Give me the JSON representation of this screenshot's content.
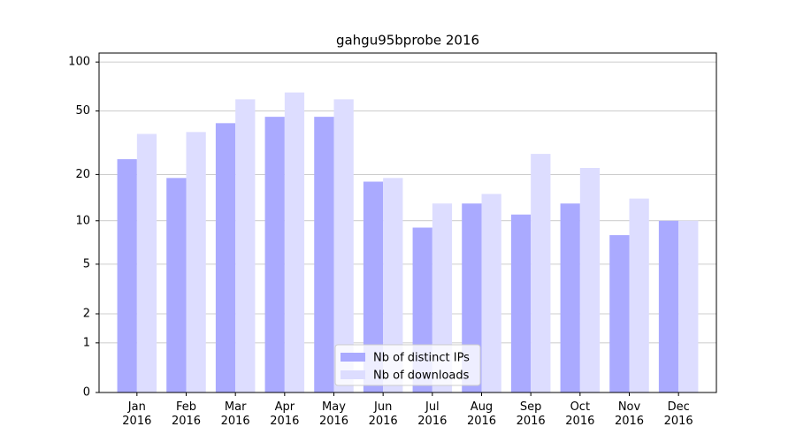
{
  "chart_data": {
    "type": "bar",
    "title": "gahgu95bprobe 2016",
    "categories": [
      "Jan\n2016",
      "Feb\n2016",
      "Mar\n2016",
      "Apr\n2016",
      "May\n2016",
      "Jun\n2016",
      "Jul\n2016",
      "Aug\n2016",
      "Sep\n2016",
      "Oct\n2016",
      "Nov\n2016",
      "Dec\n2016"
    ],
    "series": [
      {
        "name": "Nb of distinct IPs",
        "color": "#aaaaff",
        "values": [
          25,
          19,
          42,
          46,
          46,
          18,
          9,
          13,
          11,
          13,
          8,
          10
        ]
      },
      {
        "name": "Nb of downloads",
        "color": "#ddddff",
        "values": [
          36,
          37,
          59,
          65,
          59,
          19,
          13,
          15,
          27,
          22,
          14,
          10
        ]
      }
    ],
    "yscale": "log1p",
    "ylim": [
      0,
      113.5
    ],
    "yticks": [
      0,
      1,
      2,
      5,
      10,
      20,
      50,
      100
    ],
    "grid": true,
    "legend": "lower center"
  }
}
